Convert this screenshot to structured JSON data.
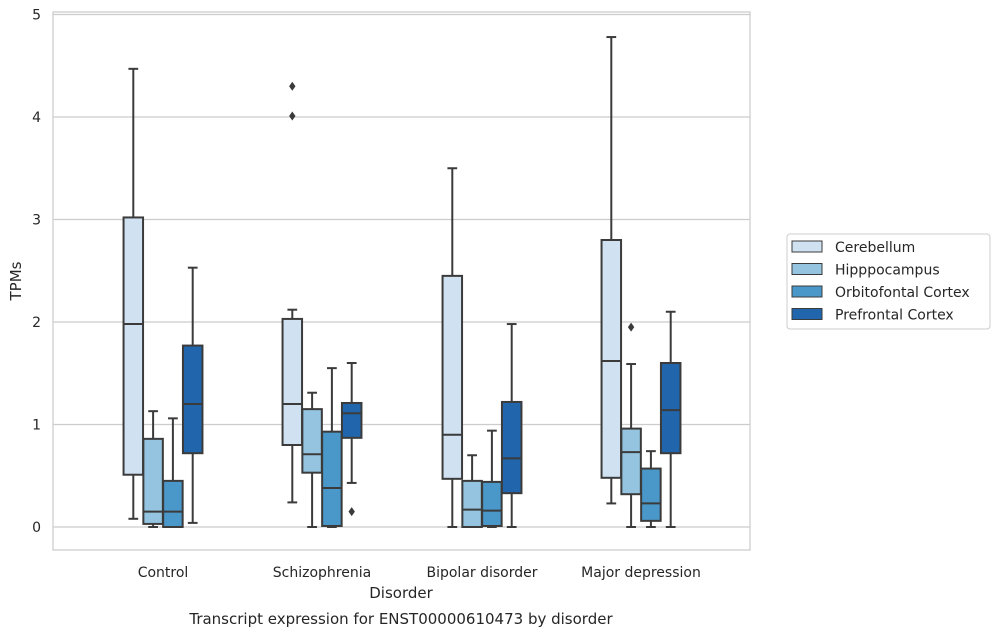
{
  "chart_data": {
    "type": "box",
    "title": "",
    "caption": "Transcript expression for ENST00000610473 by disorder",
    "xlabel": "Disorder",
    "ylabel": "TPMs",
    "ylim": [
      -0.22,
      5.05
    ],
    "yticks": [
      0,
      1,
      2,
      3,
      4,
      5
    ],
    "grid": "horizontal",
    "legend_position": "right",
    "categories": [
      "Control",
      "Schizophrenia",
      "Bipolar disorder",
      "Major depression"
    ],
    "series": [
      {
        "name": "Cerebellum",
        "color": "#d0e1f2",
        "boxes": [
          {
            "whislo": 0.08,
            "q1": 0.51,
            "med": 1.98,
            "q3": 3.02,
            "whishi": 4.47,
            "fliers": []
          },
          {
            "whislo": 0.24,
            "q1": 0.8,
            "med": 1.2,
            "q3": 2.03,
            "whishi": 2.12,
            "fliers": [
              4.3,
              4.01
            ]
          },
          {
            "whislo": 0.0,
            "q1": 0.47,
            "med": 0.9,
            "q3": 2.45,
            "whishi": 3.5,
            "fliers": []
          },
          {
            "whislo": 0.23,
            "q1": 0.48,
            "med": 1.62,
            "q3": 2.8,
            "whishi": 4.78,
            "fliers": []
          }
        ]
      },
      {
        "name": "Hipppocampus",
        "color": "#94c4df",
        "boxes": [
          {
            "whislo": 0.0,
            "q1": 0.03,
            "med": 0.15,
            "q3": 0.86,
            "whishi": 1.13,
            "fliers": []
          },
          {
            "whislo": 0.0,
            "q1": 0.53,
            "med": 0.71,
            "q3": 1.15,
            "whishi": 1.31,
            "fliers": []
          },
          {
            "whislo": 0.0,
            "q1": 0.0,
            "med": 0.17,
            "q3": 0.45,
            "whishi": 0.7,
            "fliers": []
          },
          {
            "whislo": 0.0,
            "q1": 0.32,
            "med": 0.73,
            "q3": 0.96,
            "whishi": 1.59,
            "fliers": [
              1.95
            ]
          }
        ]
      },
      {
        "name": "Orbitofontal Cortex",
        "color": "#4a98c9",
        "boxes": [
          {
            "whislo": 0.0,
            "q1": 0.0,
            "med": 0.15,
            "q3": 0.45,
            "whishi": 1.06,
            "fliers": []
          },
          {
            "whislo": 0.0,
            "q1": 0.01,
            "med": 0.38,
            "q3": 0.93,
            "whishi": 1.55,
            "fliers": []
          },
          {
            "whislo": 0.0,
            "q1": 0.01,
            "med": 0.16,
            "q3": 0.44,
            "whishi": 0.94,
            "fliers": []
          },
          {
            "whislo": 0.0,
            "q1": 0.06,
            "med": 0.23,
            "q3": 0.57,
            "whishi": 0.74,
            "fliers": []
          }
        ]
      },
      {
        "name": "Prefrontal Cortex",
        "color": "#2166ac",
        "boxes": [
          {
            "whislo": 0.04,
            "q1": 0.72,
            "med": 1.2,
            "q3": 1.77,
            "whishi": 2.53,
            "fliers": []
          },
          {
            "whislo": 0.43,
            "q1": 0.87,
            "med": 1.11,
            "q3": 1.21,
            "whishi": 1.6,
            "fliers": [
              0.15
            ]
          },
          {
            "whislo": 0.0,
            "q1": 0.33,
            "med": 0.67,
            "q3": 1.22,
            "whishi": 1.98,
            "fliers": []
          },
          {
            "whislo": 0.0,
            "q1": 0.72,
            "med": 1.14,
            "q3": 1.6,
            "whishi": 2.1,
            "fliers": []
          }
        ]
      }
    ]
  }
}
